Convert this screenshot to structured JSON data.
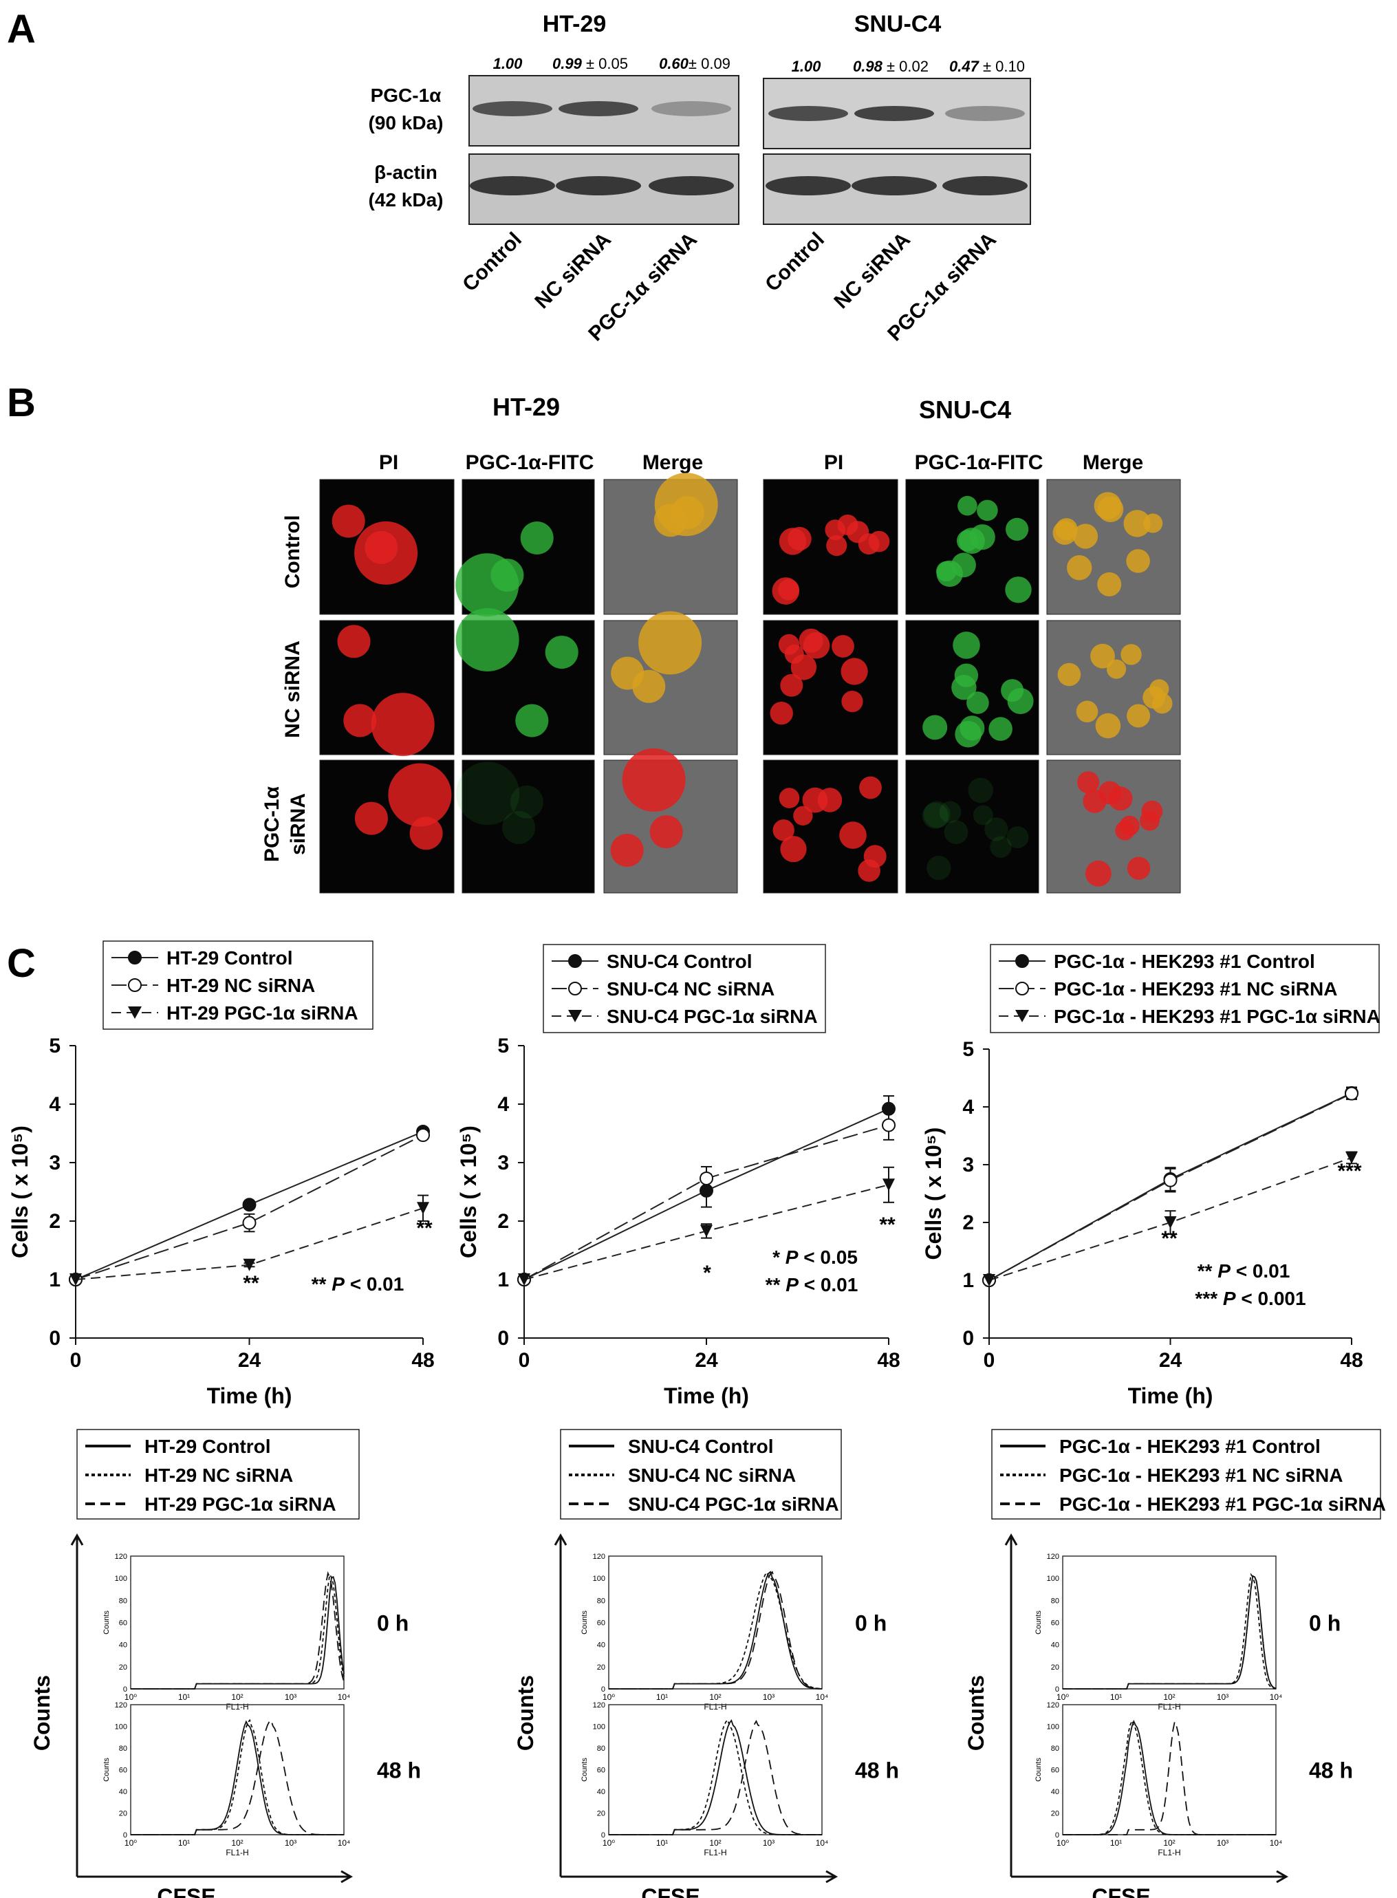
{
  "panel_letters": [
    "A",
    "B",
    "C"
  ],
  "panel_a": {
    "blots": [
      {
        "title": "HT-29",
        "ratios": [
          {
            "v": "1.00",
            "sd": ""
          },
          {
            "v": "0.99",
            "sd": "± 0.05"
          },
          {
            "v": "0.60",
            "sd": "± 0.09"
          }
        ],
        "lanes": [
          "Control",
          "NC siRNA",
          "PGC-1α siRNA"
        ],
        "pgc_intensity": [
          0.75,
          0.8,
          0.35
        ]
      },
      {
        "title": "SNU-C4",
        "ratios": [
          {
            "v": "1.00",
            "sd": ""
          },
          {
            "v": "0.98",
            "sd": "± 0.02"
          },
          {
            "v": "0.47",
            "sd": "± 0.10"
          }
        ],
        "lanes": [
          "Control",
          "NC siRNA",
          "PGC-1α siRNA"
        ],
        "pgc_intensity": [
          0.8,
          0.85,
          0.4
        ]
      }
    ],
    "row_labels": [
      {
        "name": "PGC-1α",
        "size": "(90 kDa)"
      },
      {
        "name": "β-actin",
        "size": "(42 kDa)"
      }
    ]
  },
  "panel_b": {
    "groups": [
      {
        "title": "HT-29",
        "columns": [
          "PI",
          "PGC-1α-FITC",
          "Merge"
        ]
      },
      {
        "title": "SNU-C4",
        "columns": [
          "PI",
          "PGC-1α-FITC",
          "Merge"
        ]
      }
    ],
    "row_labels": [
      [
        "Control"
      ],
      [
        "NC siRNA"
      ],
      [
        "PGC-1α",
        "siRNA"
      ]
    ],
    "colors": {
      "pi": "#e02020",
      "fitc": "#2fb33a",
      "merge_bg": "#6c6c6c"
    }
  },
  "panel_c": {
    "growth": [
      {
        "legend": [
          "HT-29 Control",
          "HT-29 NC siRNA",
          "HT-29 PGC-1α siRNA"
        ],
        "ylabel": "Cells ( x 10⁵)",
        "xlabel": "Time (h)",
        "yticks": [
          "0",
          "1",
          "2",
          "3",
          "4",
          "5"
        ],
        "xticks": [
          "0",
          "24",
          "48"
        ],
        "sig_points": [
          "**",
          "**"
        ],
        "note": [
          "** P < 0.01"
        ]
      },
      {
        "legend": [
          "SNU-C4 Control",
          "SNU-C4 NC siRNA",
          "SNU-C4 PGC-1α siRNA"
        ],
        "ylabel": "Cells ( x 10⁵)",
        "xlabel": "Time (h)",
        "yticks": [
          "0",
          "1",
          "2",
          "3",
          "4",
          "5"
        ],
        "xticks": [
          "0",
          "24",
          "48"
        ],
        "sig_points": [
          "*",
          "**"
        ],
        "note": [
          "* P < 0.05",
          "** P < 0.01"
        ]
      },
      {
        "legend": [
          "PGC-1α - HEK293 #1 Control",
          "PGC-1α - HEK293 #1 NC siRNA",
          "PGC-1α - HEK293 #1 PGC-1α siRNA"
        ],
        "ylabel": "Cells ( x 10⁵)",
        "xlabel": "Time (h)",
        "yticks": [
          "0",
          "1",
          "2",
          "3",
          "4",
          "5"
        ],
        "xticks": [
          "0",
          "24",
          "48"
        ],
        "sig_points": [
          "**",
          "***"
        ],
        "note": [
          "** P < 0.01",
          "*** P < 0.001"
        ]
      }
    ],
    "flow": [
      {
        "legend": [
          "HT-29 Control",
          "HT-29 NC siRNA",
          "HT-29 PGC-1α siRNA"
        ],
        "times": [
          "0 h",
          "48 h"
        ],
        "xlabel": "CFSE",
        "ylabel": "Counts",
        "inner_xlabel": "FL1-H",
        "inner_ylabel": "Counts",
        "inner_yticks": [
          "0",
          "20",
          "40",
          "60",
          "80",
          "100",
          "120"
        ],
        "inner_xticks": [
          "10⁰",
          "10¹",
          "10²",
          "10³",
          "10⁴"
        ]
      },
      {
        "legend": [
          "SNU-C4 Control",
          "SNU-C4 NC siRNA",
          "SNU-C4 PGC-1α siRNA"
        ],
        "times": [
          "0 h",
          "48 h"
        ],
        "xlabel": "CFSE",
        "ylabel": "Counts",
        "inner_xlabel": "FL1-H",
        "inner_ylabel": "Counts",
        "inner_yticks": [
          "0",
          "20",
          "40",
          "60",
          "80",
          "100",
          "120"
        ],
        "inner_xticks": [
          "10⁰",
          "10¹",
          "10²",
          "10³",
          "10⁴"
        ]
      },
      {
        "legend": [
          "PGC-1α - HEK293 #1 Control",
          "PGC-1α - HEK293 #1 NC siRNA",
          "PGC-1α - HEK293 #1 PGC-1α siRNA"
        ],
        "times": [
          "0 h",
          "48 h"
        ],
        "xlabel": "CFSE",
        "ylabel": "Counts",
        "inner_xlabel": "FL1-H",
        "inner_ylabel": "Counts",
        "inner_yticks": [
          "0",
          "20",
          "40",
          "60",
          "80",
          "100",
          "120"
        ],
        "inner_xticks": [
          "10⁰",
          "10¹",
          "10²",
          "10³",
          "10⁴"
        ]
      }
    ]
  },
  "chart_data": [
    {
      "type": "line",
      "x": [
        0,
        24,
        48
      ],
      "xlabel": "Time (h)",
      "ylabel": "Cells ( x 10⁵)",
      "ylim": [
        0,
        5
      ],
      "series": [
        {
          "name": "HT-29 Control",
          "values": [
            1.0,
            2.28,
            3.53
          ],
          "err": [
            0,
            0.05,
            0.06
          ]
        },
        {
          "name": "HT-29 NC siRNA",
          "values": [
            1.0,
            1.97,
            3.47
          ],
          "err": [
            0,
            0.15,
            0.06
          ]
        },
        {
          "name": "HT-29 PGC-1α siRNA",
          "values": [
            1.0,
            1.25,
            2.22
          ],
          "err": [
            0,
            0.03,
            0.22
          ]
        }
      ]
    },
    {
      "type": "line",
      "x": [
        0,
        24,
        48
      ],
      "xlabel": "Time (h)",
      "ylabel": "Cells ( x 10⁵)",
      "ylim": [
        0,
        5
      ],
      "series": [
        {
          "name": "SNU-C4 Control",
          "values": [
            1.0,
            2.52,
            3.92
          ],
          "err": [
            0,
            0.28,
            0.22
          ]
        },
        {
          "name": "SNU-C4 NC siRNA",
          "values": [
            1.0,
            2.73,
            3.64
          ],
          "err": [
            0,
            0.2,
            0.25
          ]
        },
        {
          "name": "SNU-C4 PGC-1α siRNA",
          "values": [
            1.0,
            1.83,
            2.62
          ],
          "err": [
            0,
            0.12,
            0.3
          ]
        }
      ]
    },
    {
      "type": "line",
      "x": [
        0,
        24,
        48
      ],
      "xlabel": "Time (h)",
      "ylabel": "Cells ( x 10⁵)",
      "ylim": [
        0,
        5
      ],
      "series": [
        {
          "name": "PGC-1α - HEK293 #1 Control",
          "values": [
            1.0,
            2.75,
            4.24
          ],
          "err": [
            0,
            0.2,
            0.1
          ]
        },
        {
          "name": "PGC-1α - HEK293 #1 NC siRNA",
          "values": [
            1.0,
            2.73,
            4.23
          ],
          "err": [
            0,
            0.2,
            0.1
          ]
        },
        {
          "name": "PGC-1α - HEK293 #1 PGC-1α siRNA",
          "values": [
            1.0,
            2.0,
            3.12
          ],
          "err": [
            0,
            0.2,
            0.1
          ]
        }
      ]
    }
  ]
}
